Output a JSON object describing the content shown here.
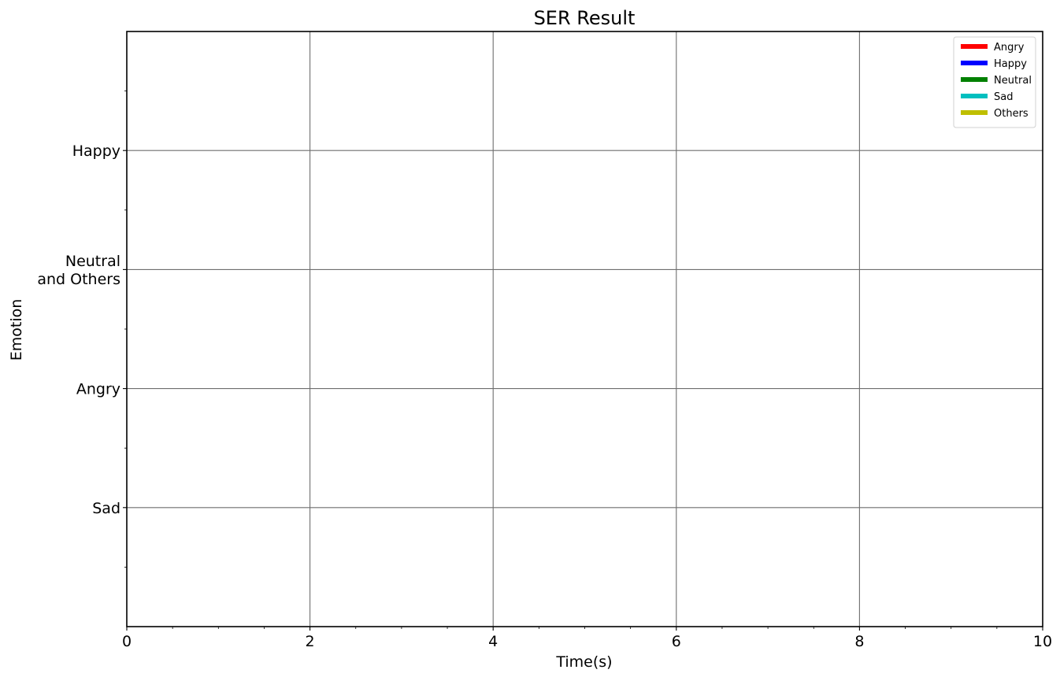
{
  "chart_data": {
    "type": "line",
    "title": "SER Result",
    "xlabel": "Time(s)",
    "ylabel": "Emotion",
    "xlim": [
      0,
      10
    ],
    "ylim": [
      -1,
      4
    ],
    "x_major_ticks": [
      0,
      2,
      4,
      6,
      8,
      10
    ],
    "x_tick_labels": [
      "0",
      "2",
      "4",
      "6",
      "8",
      "10"
    ],
    "x_minor_ticks": [
      0.5,
      1,
      1.5,
      2.5,
      3,
      3.5,
      4.5,
      5,
      5.5,
      6.5,
      7,
      7.5,
      8.5,
      9,
      9.5
    ],
    "y_major_ticks": [
      0,
      1,
      2,
      3
    ],
    "y_tick_labels": [
      [
        "Sad"
      ],
      [
        "Angry"
      ],
      [
        "Neutral",
        "and Others"
      ],
      [
        "Happy"
      ]
    ],
    "y_minor_ticks": [
      -0.5,
      0.5,
      1.5,
      2.5,
      3.5
    ],
    "grid": true,
    "legend_position": "top-right",
    "legend": [
      {
        "label": "Angry",
        "color": "#ff0000"
      },
      {
        "label": "Happy",
        "color": "#0000ff"
      },
      {
        "label": "Neutral",
        "color": "#008000"
      },
      {
        "label": "Sad",
        "color": "#00bfbf"
      },
      {
        "label": "Others",
        "color": "#bfbf00"
      }
    ],
    "series": [
      {
        "name": "Angry",
        "x": [],
        "y": []
      },
      {
        "name": "Happy",
        "x": [],
        "y": []
      },
      {
        "name": "Neutral",
        "x": [],
        "y": []
      },
      {
        "name": "Sad",
        "x": [],
        "y": []
      },
      {
        "name": "Others",
        "x": [],
        "y": []
      }
    ]
  }
}
